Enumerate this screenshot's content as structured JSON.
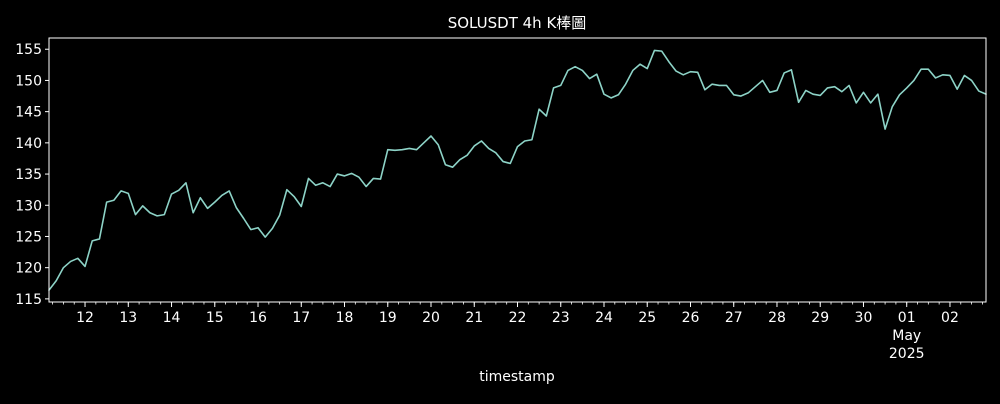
{
  "chart_data": {
    "type": "line",
    "title": "SOLUSDT 4h K棒圖",
    "xlabel": "timestamp",
    "ylabel": "",
    "x_tick_labels": [
      {
        "x": "2025-04-12",
        "label": "12"
      },
      {
        "x": "2025-04-13",
        "label": "13"
      },
      {
        "x": "2025-04-14",
        "label": "14"
      },
      {
        "x": "2025-04-15",
        "label": "15"
      },
      {
        "x": "2025-04-16",
        "label": "16"
      },
      {
        "x": "2025-04-17",
        "label": "17"
      },
      {
        "x": "2025-04-18",
        "label": "18"
      },
      {
        "x": "2025-04-19",
        "label": "19"
      },
      {
        "x": "2025-04-20",
        "label": "20"
      },
      {
        "x": "2025-04-21",
        "label": "21"
      },
      {
        "x": "2025-04-22",
        "label": "22"
      },
      {
        "x": "2025-04-23",
        "label": "23"
      },
      {
        "x": "2025-04-24",
        "label": "24"
      },
      {
        "x": "2025-04-25",
        "label": "25"
      },
      {
        "x": "2025-04-26",
        "label": "26"
      },
      {
        "x": "2025-04-27",
        "label": "27"
      },
      {
        "x": "2025-04-28",
        "label": "28"
      },
      {
        "x": "2025-04-29",
        "label": "29"
      },
      {
        "x": "2025-04-30",
        "label": "30"
      },
      {
        "x": "2025-05-01",
        "label": "01",
        "sublabels": [
          "May",
          "2025"
        ]
      },
      {
        "x": "2025-05-02",
        "label": "02"
      }
    ],
    "y_ticks": [
      115,
      120,
      125,
      130,
      135,
      140,
      145,
      150,
      155
    ],
    "xlim": [
      "2025-04-11 04:00",
      "2025-05-02 20:00"
    ],
    "ylim": [
      114.5,
      156.8
    ],
    "grid": false,
    "line_color": "#8dd3c7",
    "background": "#000000",
    "foreground": "#ffffff",
    "series": [
      {
        "x": [
          "2025-04-11 04:00",
          "2025-04-11 08:00",
          "2025-04-11 12:00",
          "2025-04-11 16:00",
          "2025-04-11 20:00",
          "2025-04-12 00:00",
          "2025-04-12 04:00",
          "2025-04-12 08:00",
          "2025-04-12 12:00",
          "2025-04-12 16:00",
          "2025-04-12 20:00",
          "2025-04-13 00:00",
          "2025-04-13 04:00",
          "2025-04-13 08:00",
          "2025-04-13 12:00",
          "2025-04-13 16:00",
          "2025-04-13 20:00",
          "2025-04-14 00:00",
          "2025-04-14 04:00",
          "2025-04-14 08:00",
          "2025-04-14 12:00",
          "2025-04-14 16:00",
          "2025-04-14 20:00",
          "2025-04-15 00:00",
          "2025-04-15 04:00",
          "2025-04-15 08:00",
          "2025-04-15 12:00",
          "2025-04-15 16:00",
          "2025-04-15 20:00",
          "2025-04-16 00:00",
          "2025-04-16 04:00",
          "2025-04-16 08:00",
          "2025-04-16 12:00",
          "2025-04-16 16:00",
          "2025-04-16 20:00",
          "2025-04-17 00:00",
          "2025-04-17 04:00",
          "2025-04-17 08:00",
          "2025-04-17 12:00",
          "2025-04-17 16:00",
          "2025-04-17 20:00",
          "2025-04-18 00:00",
          "2025-04-18 04:00",
          "2025-04-18 08:00",
          "2025-04-18 12:00",
          "2025-04-18 16:00",
          "2025-04-18 20:00",
          "2025-04-19 00:00",
          "2025-04-19 04:00",
          "2025-04-19 08:00",
          "2025-04-19 12:00",
          "2025-04-19 16:00",
          "2025-04-19 20:00",
          "2025-04-20 00:00",
          "2025-04-20 04:00",
          "2025-04-20 08:00",
          "2025-04-20 12:00",
          "2025-04-20 16:00",
          "2025-04-20 20:00",
          "2025-04-21 00:00",
          "2025-04-21 04:00",
          "2025-04-21 08:00",
          "2025-04-21 12:00",
          "2025-04-21 16:00",
          "2025-04-21 20:00",
          "2025-04-22 00:00",
          "2025-04-22 04:00",
          "2025-04-22 08:00",
          "2025-04-22 12:00",
          "2025-04-22 16:00",
          "2025-04-22 20:00",
          "2025-04-23 00:00",
          "2025-04-23 04:00",
          "2025-04-23 08:00",
          "2025-04-23 12:00",
          "2025-04-23 16:00",
          "2025-04-23 20:00",
          "2025-04-24 00:00",
          "2025-04-24 04:00",
          "2025-04-24 08:00",
          "2025-04-24 12:00",
          "2025-04-24 16:00",
          "2025-04-24 20:00",
          "2025-04-25 00:00",
          "2025-04-25 04:00",
          "2025-04-25 08:00",
          "2025-04-25 12:00",
          "2025-04-25 16:00",
          "2025-04-25 20:00",
          "2025-04-26 00:00",
          "2025-04-26 04:00",
          "2025-04-26 08:00",
          "2025-04-26 12:00",
          "2025-04-26 16:00",
          "2025-04-26 20:00",
          "2025-04-27 00:00",
          "2025-04-27 04:00",
          "2025-04-27 08:00",
          "2025-04-27 12:00",
          "2025-04-27 16:00",
          "2025-04-27 20:00",
          "2025-04-28 00:00",
          "2025-04-28 04:00",
          "2025-04-28 08:00",
          "2025-04-28 12:00",
          "2025-04-28 16:00",
          "2025-04-28 20:00",
          "2025-04-29 00:00",
          "2025-04-29 04:00",
          "2025-04-29 08:00",
          "2025-04-29 12:00",
          "2025-04-29 16:00",
          "2025-04-29 20:00",
          "2025-04-30 00:00",
          "2025-04-30 04:00",
          "2025-04-30 08:00",
          "2025-04-30 12:00",
          "2025-04-30 16:00",
          "2025-04-30 20:00",
          "2025-05-01 00:00",
          "2025-05-01 04:00",
          "2025-05-01 08:00",
          "2025-05-01 12:00",
          "2025-05-01 16:00",
          "2025-05-01 20:00",
          "2025-05-02 00:00",
          "2025-05-02 04:00",
          "2025-05-02 08:00",
          "2025-05-02 12:00",
          "2025-05-02 16:00",
          "2025-05-02 20:00"
        ],
        "values": [
          116.4,
          117.9,
          120.0,
          121.0,
          121.5,
          120.2,
          124.3,
          124.6,
          130.5,
          130.8,
          132.3,
          131.9,
          128.5,
          129.9,
          128.8,
          128.3,
          128.5,
          131.8,
          132.4,
          133.6,
          128.8,
          131.2,
          129.5,
          130.5,
          131.6,
          132.3,
          129.6,
          127.9,
          126.1,
          126.4,
          124.9,
          126.3,
          128.4,
          132.5,
          131.4,
          129.8,
          134.3,
          133.2,
          133.6,
          133.0,
          135.0,
          134.7,
          135.1,
          134.5,
          133.0,
          134.3,
          134.2,
          138.9,
          138.8,
          138.9,
          139.1,
          138.9,
          140.0,
          141.1,
          139.7,
          136.5,
          136.1,
          137.3,
          138.0,
          139.5,
          140.3,
          139.1,
          138.4,
          137.0,
          136.7,
          139.4,
          140.3,
          140.5,
          145.4,
          144.3,
          148.8,
          149.2,
          151.6,
          152.2,
          151.6,
          150.3,
          151.0,
          147.8,
          147.2,
          147.7,
          149.4,
          151.6,
          152.6,
          151.9,
          154.8,
          154.7,
          153.0,
          151.5,
          150.9,
          151.4,
          151.3,
          148.5,
          149.4,
          149.2,
          149.2,
          147.7,
          147.5,
          148.0,
          149.0,
          150.0,
          148.1,
          148.4,
          151.2,
          151.7,
          146.5,
          148.4,
          147.8,
          147.6,
          148.8,
          149.0,
          148.2,
          149.2,
          146.4,
          148.1,
          146.4,
          147.8,
          142.2,
          145.8,
          147.7,
          148.8,
          150.0,
          151.8,
          151.8,
          150.4,
          150.9,
          150.8,
          148.6,
          150.8,
          150.0,
          148.3,
          147.8
        ]
      }
    ]
  }
}
